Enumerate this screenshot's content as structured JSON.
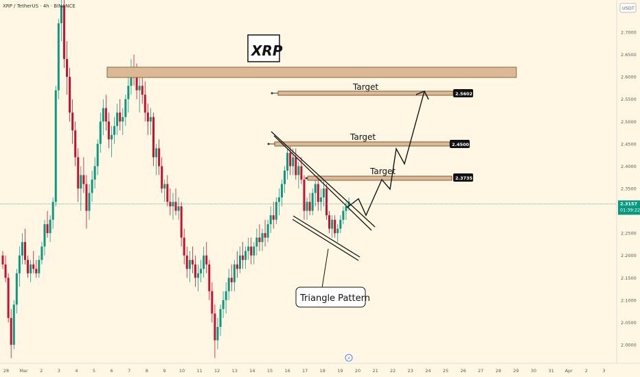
{
  "header": {
    "symbol": "XRP / TetherUS · 4h · BINANCE",
    "currency": "USDT"
  },
  "title_box": "XRP",
  "chart_data": {
    "type": "candlestick",
    "title": "XRP",
    "ylim": [
      1.96,
      2.76
    ],
    "y_ticks": [
      "2.7000",
      "2.6500",
      "2.6000",
      "2.5500",
      "2.5000",
      "2.4500",
      "2.4000",
      "2.3500",
      "2.3000",
      "2.2500",
      "2.2000",
      "2.1500",
      "2.1000",
      "2.0500",
      "2.0000"
    ],
    "x_ticks": [
      "28",
      "Mar",
      "2",
      "3",
      "4",
      "5",
      "6",
      "7",
      "8",
      "9",
      "10",
      "11",
      "12",
      "13",
      "14",
      "15",
      "16",
      "17",
      "18",
      "19",
      "20",
      "21",
      "22",
      "23",
      "24",
      "25",
      "26",
      "27",
      "28",
      "29",
      "30",
      "31",
      "Apr",
      "2",
      "3"
    ],
    "current_price": {
      "value": "2.3157",
      "countdown": "01:39:22"
    },
    "targets": [
      {
        "label": "Target",
        "price": "2.5602"
      },
      {
        "label": "Target",
        "price": "2.4500"
      },
      {
        "label": "Target",
        "price": "2.3735"
      }
    ],
    "resistance_zone": [
      2.605,
      2.625
    ],
    "pattern_label": "Triangle Pattern",
    "colors": {
      "up": "#089981",
      "down": "#c8102e",
      "zone": "#d9b58f",
      "price_line": "#089981",
      "background": "#fff7e3"
    },
    "candles": [
      [
        2.2,
        2.21,
        2.17,
        2.18
      ],
      [
        2.18,
        2.2,
        2.14,
        2.15
      ],
      [
        2.15,
        2.16,
        2.05,
        2.06
      ],
      [
        2.06,
        2.08,
        1.97,
        2.0
      ],
      [
        2.0,
        2.1,
        1.99,
        2.09
      ],
      [
        2.09,
        2.17,
        2.07,
        2.16
      ],
      [
        2.16,
        2.22,
        2.13,
        2.2
      ],
      [
        2.2,
        2.25,
        2.18,
        2.23
      ],
      [
        2.23,
        2.26,
        2.18,
        2.19
      ],
      [
        2.19,
        2.2,
        2.15,
        2.16
      ],
      [
        2.16,
        2.19,
        2.14,
        2.18
      ],
      [
        2.18,
        2.21,
        2.16,
        2.17
      ],
      [
        2.17,
        2.19,
        2.15,
        2.16
      ],
      [
        2.16,
        2.2,
        2.15,
        2.19
      ],
      [
        2.19,
        2.23,
        2.18,
        2.22
      ],
      [
        2.22,
        2.28,
        2.2,
        2.27
      ],
      [
        2.27,
        2.3,
        2.24,
        2.25
      ],
      [
        2.25,
        2.29,
        2.23,
        2.28
      ],
      [
        2.28,
        2.33,
        2.26,
        2.32
      ],
      [
        2.32,
        2.58,
        2.31,
        2.57
      ],
      [
        2.57,
        2.73,
        2.55,
        2.72
      ],
      [
        2.72,
        2.8,
        2.68,
        2.76
      ],
      [
        2.76,
        2.78,
        2.62,
        2.64
      ],
      [
        2.64,
        2.68,
        2.56,
        2.6
      ],
      [
        2.6,
        2.62,
        2.5,
        2.52
      ],
      [
        2.52,
        2.55,
        2.45,
        2.48
      ],
      [
        2.48,
        2.5,
        2.4,
        2.42
      ],
      [
        2.42,
        2.44,
        2.32,
        2.35
      ],
      [
        2.35,
        2.4,
        2.3,
        2.38
      ],
      [
        2.38,
        2.42,
        2.34,
        2.36
      ],
      [
        2.36,
        2.38,
        2.26,
        2.3
      ],
      [
        2.3,
        2.36,
        2.28,
        2.34
      ],
      [
        2.34,
        2.39,
        2.32,
        2.37
      ],
      [
        2.37,
        2.42,
        2.35,
        2.4
      ],
      [
        2.4,
        2.46,
        2.38,
        2.45
      ],
      [
        2.45,
        2.52,
        2.43,
        2.5
      ],
      [
        2.5,
        2.55,
        2.47,
        2.53
      ],
      [
        2.53,
        2.56,
        2.48,
        2.5
      ],
      [
        2.5,
        2.52,
        2.44,
        2.46
      ],
      [
        2.46,
        2.49,
        2.42,
        2.47
      ],
      [
        2.47,
        2.51,
        2.45,
        2.49
      ],
      [
        2.49,
        2.54,
        2.47,
        2.52
      ],
      [
        2.52,
        2.55,
        2.48,
        2.5
      ],
      [
        2.5,
        2.53,
        2.47,
        2.51
      ],
      [
        2.51,
        2.56,
        2.49,
        2.55
      ],
      [
        2.55,
        2.6,
        2.52,
        2.58
      ],
      [
        2.58,
        2.64,
        2.56,
        2.62
      ],
      [
        2.62,
        2.65,
        2.58,
        2.6
      ],
      [
        2.6,
        2.63,
        2.55,
        2.57
      ],
      [
        2.57,
        2.6,
        2.52,
        2.58
      ],
      [
        2.58,
        2.61,
        2.54,
        2.56
      ],
      [
        2.56,
        2.59,
        2.5,
        2.52
      ],
      [
        2.52,
        2.54,
        2.47,
        2.5
      ],
      [
        2.5,
        2.53,
        2.47,
        2.51
      ],
      [
        2.51,
        2.52,
        2.4,
        2.42
      ],
      [
        2.42,
        2.45,
        2.38,
        2.44
      ],
      [
        2.44,
        2.46,
        2.38,
        2.4
      ],
      [
        2.4,
        2.42,
        2.34,
        2.35
      ],
      [
        2.35,
        2.37,
        2.32,
        2.36
      ],
      [
        2.36,
        2.38,
        2.31,
        2.32
      ],
      [
        2.32,
        2.35,
        2.29,
        2.31
      ],
      [
        2.31,
        2.34,
        2.28,
        2.32
      ],
      [
        2.32,
        2.35,
        2.29,
        2.3
      ],
      [
        2.3,
        2.33,
        2.28,
        2.31
      ],
      [
        2.31,
        2.32,
        2.22,
        2.24
      ],
      [
        2.24,
        2.26,
        2.18,
        2.2
      ],
      [
        2.2,
        2.22,
        2.15,
        2.17
      ],
      [
        2.17,
        2.21,
        2.14,
        2.19
      ],
      [
        2.19,
        2.22,
        2.16,
        2.18
      ],
      [
        2.18,
        2.2,
        2.13,
        2.15
      ],
      [
        2.15,
        2.18,
        2.12,
        2.16
      ],
      [
        2.16,
        2.19,
        2.14,
        2.17
      ],
      [
        2.17,
        2.22,
        2.15,
        2.2
      ],
      [
        2.2,
        2.23,
        2.16,
        2.18
      ],
      [
        2.18,
        2.19,
        2.1,
        2.12
      ],
      [
        2.12,
        2.14,
        2.05,
        2.07
      ],
      [
        2.07,
        2.09,
        1.97,
        2.01
      ],
      [
        2.01,
        2.06,
        1.99,
        2.04
      ],
      [
        2.04,
        2.09,
        2.02,
        2.08
      ],
      [
        2.08,
        2.12,
        2.06,
        2.1
      ],
      [
        2.1,
        2.14,
        2.07,
        2.12
      ],
      [
        2.12,
        2.17,
        2.1,
        2.15
      ],
      [
        2.15,
        2.18,
        2.12,
        2.14
      ],
      [
        2.14,
        2.19,
        2.12,
        2.18
      ],
      [
        2.18,
        2.21,
        2.15,
        2.17
      ],
      [
        2.17,
        2.22,
        2.16,
        2.2
      ],
      [
        2.2,
        2.23,
        2.17,
        2.19
      ],
      [
        2.19,
        2.22,
        2.17,
        2.21
      ],
      [
        2.21,
        2.24,
        2.19,
        2.22
      ],
      [
        2.22,
        2.24,
        2.18,
        2.2
      ],
      [
        2.2,
        2.23,
        2.18,
        2.22
      ],
      [
        2.22,
        2.26,
        2.2,
        2.24
      ],
      [
        2.24,
        2.27,
        2.21,
        2.23
      ],
      [
        2.23,
        2.26,
        2.21,
        2.25
      ],
      [
        2.25,
        2.28,
        2.22,
        2.24
      ],
      [
        2.24,
        2.28,
        2.23,
        2.27
      ],
      [
        2.27,
        2.31,
        2.25,
        2.29
      ],
      [
        2.29,
        2.32,
        2.26,
        2.28
      ],
      [
        2.28,
        2.33,
        2.27,
        2.32
      ],
      [
        2.32,
        2.35,
        2.29,
        2.33
      ],
      [
        2.33,
        2.37,
        2.31,
        2.36
      ],
      [
        2.36,
        2.4,
        2.34,
        2.39
      ],
      [
        2.39,
        2.44,
        2.37,
        2.43
      ],
      [
        2.43,
        2.45,
        2.38,
        2.4
      ],
      [
        2.4,
        2.44,
        2.38,
        2.42
      ],
      [
        2.42,
        2.44,
        2.37,
        2.38
      ],
      [
        2.38,
        2.41,
        2.35,
        2.4
      ],
      [
        2.4,
        2.42,
        2.36,
        2.37
      ],
      [
        2.37,
        2.38,
        2.28,
        2.3
      ],
      [
        2.3,
        2.33,
        2.28,
        2.32
      ],
      [
        2.32,
        2.34,
        2.29,
        2.3
      ],
      [
        2.3,
        2.35,
        2.29,
        2.34
      ],
      [
        2.34,
        2.37,
        2.31,
        2.36
      ],
      [
        2.36,
        2.37,
        2.3,
        2.32
      ],
      [
        2.32,
        2.35,
        2.3,
        2.33
      ],
      [
        2.33,
        2.37,
        2.31,
        2.35
      ],
      [
        2.35,
        2.36,
        2.28,
        2.29
      ],
      [
        2.29,
        2.3,
        2.25,
        2.26
      ],
      [
        2.26,
        2.29,
        2.24,
        2.28
      ],
      [
        2.28,
        2.29,
        2.24,
        2.25
      ],
      [
        2.25,
        2.27,
        2.23,
        2.26
      ],
      [
        2.26,
        2.29,
        2.25,
        2.28
      ],
      [
        2.28,
        2.31,
        2.27,
        2.3
      ],
      [
        2.3,
        2.32,
        2.28,
        2.31
      ],
      [
        2.31,
        2.33,
        2.3,
        2.32
      ]
    ]
  }
}
